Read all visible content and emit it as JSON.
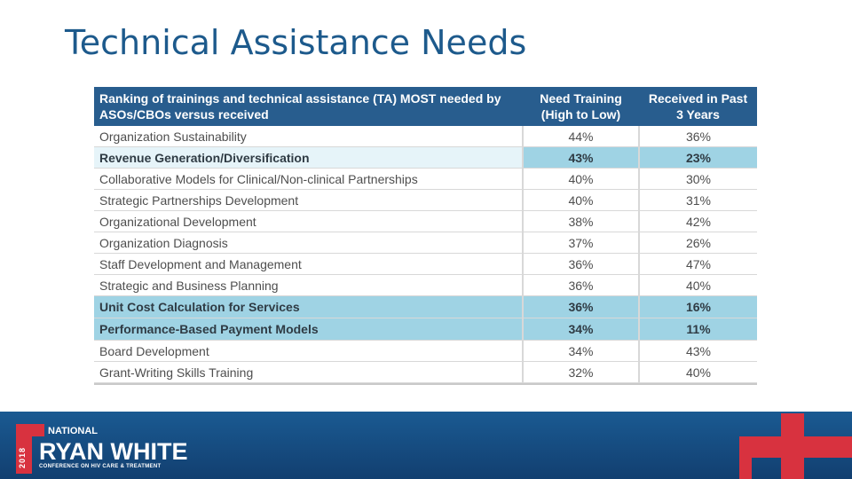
{
  "slide": {
    "title": "Technical Assistance Needs"
  },
  "table": {
    "headers": {
      "item": "Ranking of trainings and technical assistance (TA) MOST needed by ASOs/CBOs versus received",
      "need": "Need Training (High to Low)",
      "received": "Received in Past 3 Years"
    },
    "rows": [
      {
        "item": "Organization Sustainability",
        "need": "44%",
        "received": "36%"
      },
      {
        "item": "Revenue Generation/Diversification",
        "need": "43%",
        "received": "23%"
      },
      {
        "item": "Collaborative Models for Clinical/Non-clinical Partnerships",
        "need": "40%",
        "received": "30%"
      },
      {
        "item": "Strategic Partnerships Development",
        "need": "40%",
        "received": "31%"
      },
      {
        "item": "Organizational Development",
        "need": "38%",
        "received": "42%"
      },
      {
        "item": "Organization Diagnosis",
        "need": "37%",
        "received": "26%"
      },
      {
        "item": "Staff Development and Management",
        "need": "36%",
        "received": "47%"
      },
      {
        "item": "Strategic and Business Planning",
        "need": "36%",
        "received": "40%"
      },
      {
        "item": "Unit Cost Calculation for Services",
        "need": "36%",
        "received": "16%"
      },
      {
        "item": "Performance-Based Payment Models",
        "need": "34%",
        "received": "11%"
      },
      {
        "item": "Board Development",
        "need": "34%",
        "received": "43%"
      },
      {
        "item": "Grant-Writing Skills Training",
        "need": "32%",
        "received": "40%"
      }
    ]
  },
  "footer": {
    "logo": {
      "year": "2018",
      "national": "NATIONAL",
      "name": "RYAN WHITE",
      "subtitle": "CONFERENCE ON HIV CARE & TREATMENT"
    }
  },
  "colors": {
    "title": "#1d5a8c",
    "header_bg": "#285d8e",
    "highlight": "#9fd3e4",
    "highlight_light": "#e6f4f9",
    "footer_bg": "#1a5a92",
    "accent_red": "#d8323f"
  }
}
